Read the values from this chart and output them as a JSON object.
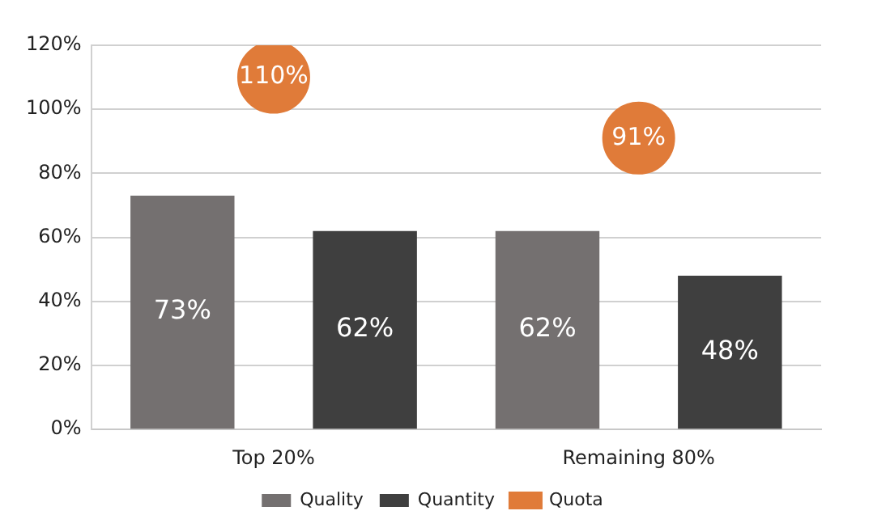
{
  "chart_data": {
    "type": "bar",
    "categories": [
      "Top 20%",
      "Remaining 80%"
    ],
    "series": [
      {
        "name": "Quality",
        "color": "#747070",
        "values": [
          73,
          62
        ],
        "value_labels": [
          "73%",
          "62%"
        ]
      },
      {
        "name": "Quantity",
        "color": "#3f3f3f",
        "values": [
          62,
          48
        ],
        "value_labels": [
          "62%",
          "48%"
        ]
      },
      {
        "name": "Quota",
        "type": "scatter",
        "color": "#e07b39",
        "x": [
          "Top 20%",
          "Remaining 80%"
        ],
        "values": [
          110,
          91
        ],
        "value_labels": [
          "110%",
          "91%"
        ]
      }
    ],
    "ylim": [
      0,
      120
    ],
    "yticks": [
      {
        "value": 0,
        "label": "0%"
      },
      {
        "value": 20,
        "label": "20%"
      },
      {
        "value": 40,
        "label": "40%"
      },
      {
        "value": 60,
        "label": "60%"
      },
      {
        "value": 80,
        "label": "80%"
      },
      {
        "value": 100,
        "label": "100%"
      },
      {
        "value": 120,
        "label": "120%"
      }
    ],
    "grid": "y",
    "legend": "bottom",
    "marker": "circle"
  }
}
